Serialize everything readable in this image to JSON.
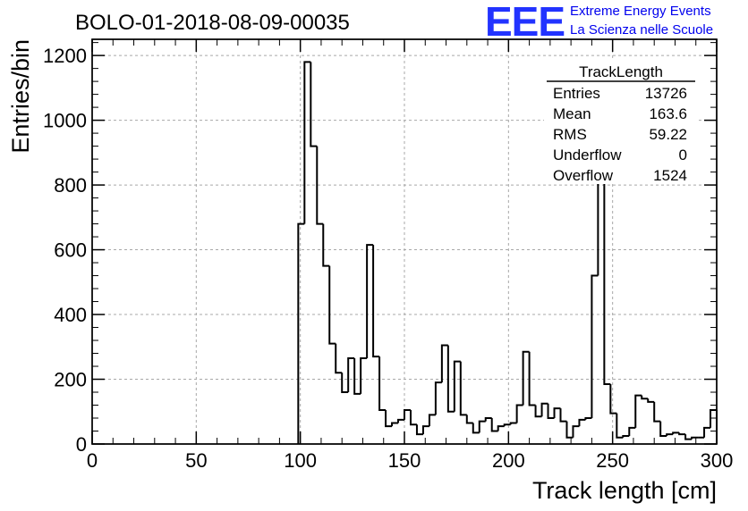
{
  "title": "BOLO-01-2018-08-09-00035",
  "logo": {
    "mark": "EEE",
    "line1": "Extreme Energy Events",
    "line2": "La Scienza nelle Scuole",
    "color": "#0000ee"
  },
  "stats": {
    "name": "TrackLength",
    "rows": [
      {
        "label": "Entries",
        "value": "13726"
      },
      {
        "label": "Mean",
        "value": "163.6"
      },
      {
        "label": "RMS",
        "value": "59.22"
      },
      {
        "label": "Underflow",
        "value": "0"
      },
      {
        "label": "Overflow",
        "value": "1524"
      }
    ]
  },
  "chart_data": {
    "type": "histogram",
    "xlabel": "Track length [cm]",
    "ylabel": "Entries/bin",
    "xlim": [
      0,
      300
    ],
    "ylim": [
      0,
      1250
    ],
    "grid": true,
    "line_color": "#000000",
    "xticks": [
      0,
      50,
      100,
      150,
      200,
      250,
      300
    ],
    "yticks": [
      0,
      200,
      400,
      600,
      800,
      1000,
      1200
    ],
    "bin_width": 3,
    "bin_start": 99,
    "values": [
      680,
      1180,
      920,
      680,
      550,
      310,
      220,
      160,
      265,
      155,
      265,
      615,
      270,
      105,
      55,
      65,
      75,
      105,
      60,
      30,
      55,
      90,
      190,
      305,
      100,
      255,
      90,
      65,
      35,
      70,
      80,
      40,
      55,
      60,
      65,
      120,
      285,
      120,
      85,
      125,
      80,
      110,
      70,
      20,
      55,
      75,
      80,
      520,
      840,
      185,
      95,
      20,
      25,
      50,
      150,
      140,
      130,
      70,
      25,
      30,
      35,
      30,
      15,
      20,
      20,
      50,
      105
    ]
  }
}
